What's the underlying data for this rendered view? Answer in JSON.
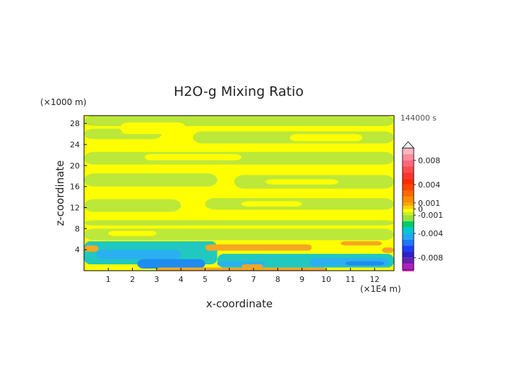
{
  "chart_data": {
    "type": "heatmap",
    "title": "H2O-g Mixing Ratio",
    "xlabel": "x-coordinate",
    "ylabel": "z-coordinate",
    "x_unit": "(×1E4 m)",
    "y_unit": "(×1000 m)",
    "time_label": "144000 s",
    "xlim": [
      0,
      12.8
    ],
    "ylim": [
      0,
      29.5
    ],
    "x_ticks": [
      "1",
      "2",
      "3",
      "4",
      "5",
      "6",
      "7",
      "8",
      "9",
      "10",
      "11",
      "12"
    ],
    "y_ticks": [
      "4",
      "8",
      "12",
      "16",
      "20",
      "24",
      "28"
    ],
    "colorbar": {
      "labels": [
        "0.008",
        "0.004",
        "0.001",
        "0",
        "-0.001",
        "-0.004",
        "-0.008"
      ],
      "levels": [
        0.01,
        0.009,
        0.008,
        0.007,
        0.006,
        0.005,
        0.004,
        0.003,
        0.002,
        0.001,
        0.0005,
        0,
        -0.0005,
        -0.001,
        -0.002,
        -0.003,
        -0.004,
        -0.005,
        -0.006,
        -0.007,
        -0.008,
        -0.009,
        -0.01
      ],
      "colors": [
        "#ffb6c1",
        "#ff8c9a",
        "#ff6680",
        "#ff4d4d",
        "#ff3333",
        "#ff2a00",
        "#ff4500",
        "#ff6a00",
        "#ff8c00",
        "#ffa500",
        "#ffd000",
        "#ffff00",
        "#c8f020",
        "#9be33a",
        "#00cc66",
        "#00c8d0",
        "#20a8f0",
        "#1e78ff",
        "#1e3cff",
        "#3020c8",
        "#6a1fb0",
        "#b01ec0",
        "#ff3cc8"
      ],
      "extend_top": true
    },
    "field": {
      "description_levels": {
        "orange": 0.002,
        "yellow": 0.0005,
        "green": 0,
        "teal": -0.0015,
        "cyan": -0.003,
        "blue": -0.004
      }
    }
  }
}
